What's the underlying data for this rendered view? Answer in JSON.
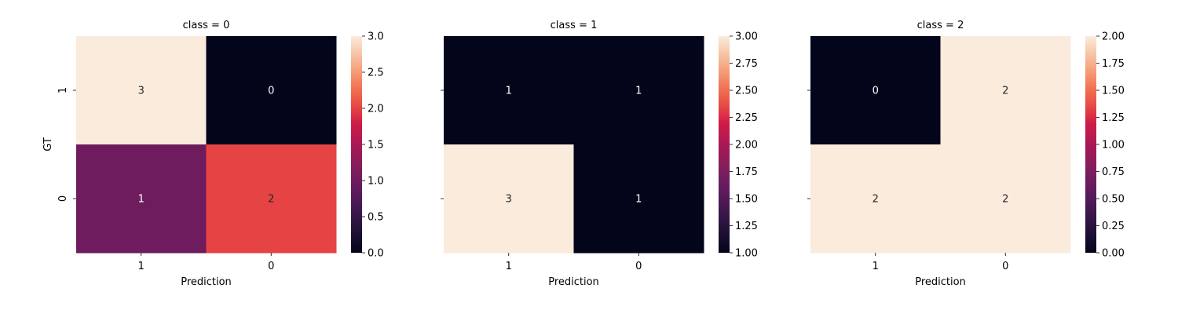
{
  "figure": {
    "ylabel": "GT"
  },
  "chart_data": [
    {
      "type": "heatmap",
      "title": "class = 0",
      "xlabel": "Prediction",
      "ylabel": "GT",
      "x_categories": [
        "1",
        "0"
      ],
      "y_categories": [
        "1",
        "0"
      ],
      "values": [
        [
          3,
          0
        ],
        [
          1,
          2
        ]
      ],
      "colorbar": {
        "vmin": 0.0,
        "vmax": 3.0,
        "ticks": [
          "0.0",
          "0.5",
          "1.0",
          "1.5",
          "2.0",
          "2.5",
          "3.0"
        ]
      },
      "colormap": "rocket",
      "annotated": true
    },
    {
      "type": "heatmap",
      "title": "class = 1",
      "xlabel": "Prediction",
      "ylabel": "",
      "x_categories": [
        "1",
        "0"
      ],
      "y_categories": [
        "1",
        "0"
      ],
      "values": [
        [
          1,
          1
        ],
        [
          3,
          1
        ]
      ],
      "colorbar": {
        "vmin": 1.0,
        "vmax": 3.0,
        "ticks": [
          "1.00",
          "1.25",
          "1.50",
          "1.75",
          "2.00",
          "2.25",
          "2.50",
          "2.75",
          "3.00"
        ]
      },
      "colormap": "rocket",
      "annotated": true
    },
    {
      "type": "heatmap",
      "title": "class = 2",
      "xlabel": "Prediction",
      "ylabel": "",
      "x_categories": [
        "1",
        "0"
      ],
      "y_categories": [
        "1",
        "0"
      ],
      "values": [
        [
          0,
          2
        ],
        [
          2,
          2
        ]
      ],
      "colorbar": {
        "vmin": 0.0,
        "vmax": 2.0,
        "ticks": [
          "0.00",
          "0.25",
          "0.50",
          "0.75",
          "1.00",
          "1.25",
          "1.50",
          "1.75",
          "2.00"
        ]
      },
      "colormap": "rocket",
      "annotated": true
    }
  ]
}
